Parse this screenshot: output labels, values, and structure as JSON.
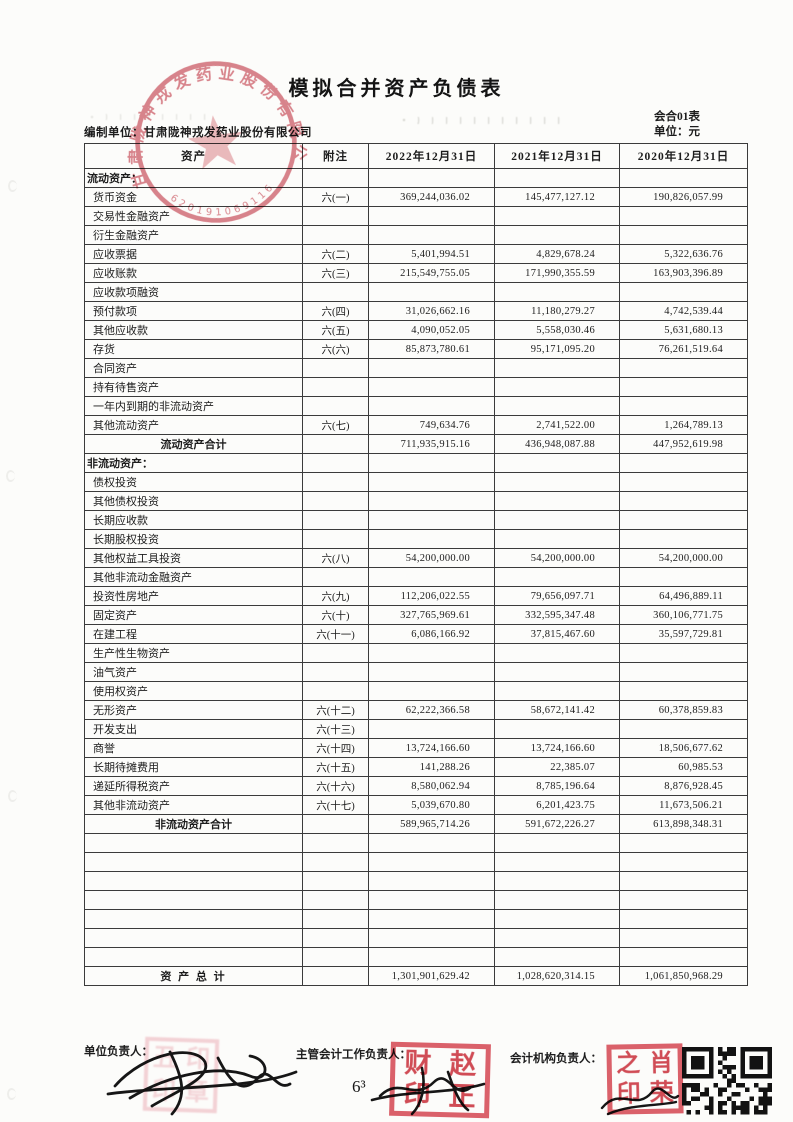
{
  "page": {
    "title": "模拟合并资产负债表",
    "form_code": "会合01表",
    "unit_label": "单位：元",
    "prepared_by_label": "编制单位：",
    "prepared_by": "甘肃陇神戎发药业股份有限公司"
  },
  "table": {
    "headers": [
      "资产",
      "附注",
      "2022年12月31日",
      "2021年12月31日",
      "2020年12月31日"
    ],
    "rows": [
      {
        "t": "sec",
        "l": "流动资产："
      },
      {
        "t": "item",
        "l": "货币资金",
        "n": "六(一)",
        "a": "369,244,036.02",
        "b": "145,477,127.12",
        "c": "190,826,057.99"
      },
      {
        "t": "item",
        "l": "交易性金融资产"
      },
      {
        "t": "item",
        "l": "衍生金融资产"
      },
      {
        "t": "item",
        "l": "应收票据",
        "n": "六(二)",
        "a": "5,401,994.51",
        "b": "4,829,678.24",
        "c": "5,322,636.76"
      },
      {
        "t": "item",
        "l": "应收账款",
        "n": "六(三)",
        "a": "215,549,755.05",
        "b": "171,990,355.59",
        "c": "163,903,396.89"
      },
      {
        "t": "item",
        "l": "应收款项融资"
      },
      {
        "t": "item",
        "l": "预付款项",
        "n": "六(四)",
        "a": "31,026,662.16",
        "b": "11,180,279.27",
        "c": "4,742,539.44"
      },
      {
        "t": "item",
        "l": "其他应收款",
        "n": "六(五)",
        "a": "4,090,052.05",
        "b": "5,558,030.46",
        "c": "5,631,680.13"
      },
      {
        "t": "item",
        "l": "存货",
        "n": "六(六)",
        "a": "85,873,780.61",
        "b": "95,171,095.20",
        "c": "76,261,519.64"
      },
      {
        "t": "item",
        "l": "合同资产"
      },
      {
        "t": "item",
        "l": "持有待售资产"
      },
      {
        "t": "item",
        "l": "一年内到期的非流动资产"
      },
      {
        "t": "item",
        "l": "其他流动资产",
        "n": "六(七)",
        "a": "749,634.76",
        "b": "2,741,522.00",
        "c": "1,264,789.13"
      },
      {
        "t": "tot",
        "l": "流动资产合计",
        "a": "711,935,915.16",
        "b": "436,948,087.88",
        "c": "447,952,619.98"
      },
      {
        "t": "sec",
        "l": "非流动资产："
      },
      {
        "t": "item",
        "l": "债权投资"
      },
      {
        "t": "item",
        "l": "其他债权投资"
      },
      {
        "t": "item",
        "l": "长期应收款"
      },
      {
        "t": "item",
        "l": "长期股权投资"
      },
      {
        "t": "item",
        "l": "其他权益工具投资",
        "n": "六(八)",
        "a": "54,200,000.00",
        "b": "54,200,000.00",
        "c": "54,200,000.00"
      },
      {
        "t": "item",
        "l": "其他非流动金融资产"
      },
      {
        "t": "item",
        "l": "投资性房地产",
        "n": "六(九)",
        "a": "112,206,022.55",
        "b": "79,656,097.71",
        "c": "64,496,889.11"
      },
      {
        "t": "item",
        "l": "固定资产",
        "n": "六(十)",
        "a": "327,765,969.61",
        "b": "332,595,347.48",
        "c": "360,106,771.75"
      },
      {
        "t": "item",
        "l": "在建工程",
        "n": "六(十一)",
        "a": "6,086,166.92",
        "b": "37,815,467.60",
        "c": "35,597,729.81"
      },
      {
        "t": "item",
        "l": "生产性生物资产"
      },
      {
        "t": "item",
        "l": "油气资产"
      },
      {
        "t": "item",
        "l": "使用权资产"
      },
      {
        "t": "item",
        "l": "无形资产",
        "n": "六(十二)",
        "a": "62,222,366.58",
        "b": "58,672,141.42",
        "c": "60,378,859.83"
      },
      {
        "t": "item",
        "l": "开发支出",
        "n": "六(十三)"
      },
      {
        "t": "item",
        "l": "商誉",
        "n": "六(十四)",
        "a": "13,724,166.60",
        "b": "13,724,166.60",
        "c": "18,506,677.62"
      },
      {
        "t": "item",
        "l": "长期待摊费用",
        "n": "六(十五)",
        "a": "141,288.26",
        "b": "22,385.07",
        "c": "60,985.53"
      },
      {
        "t": "item",
        "l": "递延所得税资产",
        "n": "六(十六)",
        "a": "8,580,062.94",
        "b": "8,785,196.64",
        "c": "8,876,928.45"
      },
      {
        "t": "item",
        "l": "其他非流动资产",
        "n": "六(十七)",
        "a": "5,039,670.80",
        "b": "6,201,423.75",
        "c": "11,673,506.21"
      },
      {
        "t": "tot",
        "l": "非流动资产合计",
        "a": "589,965,714.26",
        "b": "591,672,226.27",
        "c": "613,898,348.31"
      },
      {
        "t": "emp"
      },
      {
        "t": "emp"
      },
      {
        "t": "emp"
      },
      {
        "t": "emp"
      },
      {
        "t": "emp"
      },
      {
        "t": "emp"
      },
      {
        "t": "emp"
      },
      {
        "t": "tot2",
        "l": "资 产 总 计",
        "a": "1,301,901,629.42",
        "b": "1,028,620,314.15",
        "c": "1,061,850,968.29"
      }
    ]
  },
  "footer": {
    "unit_head_label": "单位负责人：",
    "chief_accountant_label": "主管会计工作负责人：",
    "accounting_dept_head_label": "会计机构负责人：",
    "handwritten_mark": "6³"
  },
  "stamps": {
    "company_seal_text": "甘肃陇神戎发药业股份有限公司",
    "company_seal_number": "620191069116",
    "middle_seal_chars": [
      "财",
      "赵",
      "印",
      "正"
    ],
    "right_seal_chars": [
      "之",
      "肖",
      "印",
      "荣"
    ]
  },
  "colors": {
    "seal_red": "#c43a48",
    "table_border": "#3b3b3b"
  }
}
